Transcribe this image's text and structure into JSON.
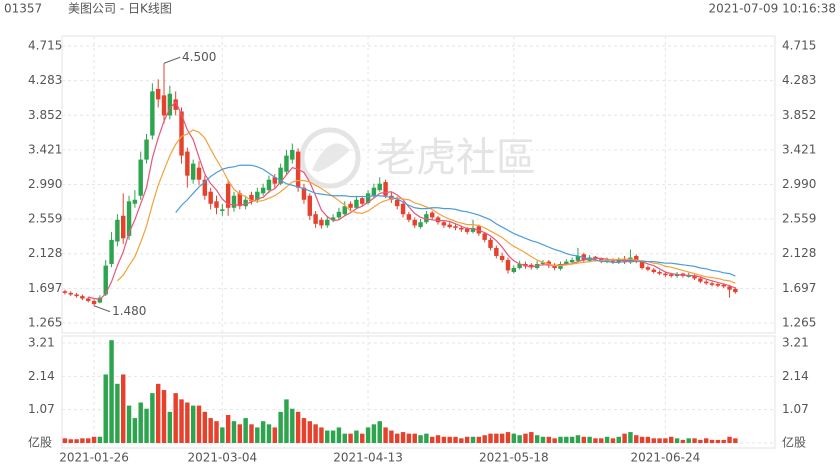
{
  "header": {
    "code": "01357",
    "title": "美图公司 - 日K线图",
    "time": "2021-07-09 10:16:38"
  },
  "watermark": "老虎社區",
  "chart_data": {
    "type": "candlestick",
    "up_color": "#2da44e",
    "down_color": "#e5412d",
    "grid": true,
    "categories": [
      null,
      null,
      null,
      null,
      null,
      "2021-01-26",
      null,
      null,
      null,
      null,
      null,
      null,
      null,
      null,
      null,
      null,
      null,
      null,
      null,
      null,
      null,
      null,
      null,
      null,
      null,
      null,
      null,
      "2021-03-04",
      null,
      null,
      null,
      null,
      null,
      null,
      null,
      null,
      null,
      null,
      null,
      null,
      null,
      null,
      null,
      null,
      null,
      null,
      null,
      null,
      null,
      null,
      null,
      null,
      "2021-04-13",
      null,
      null,
      null,
      null,
      null,
      null,
      null,
      null,
      null,
      null,
      null,
      null,
      null,
      null,
      null,
      null,
      null,
      null,
      null,
      null,
      null,
      null,
      null,
      null,
      "2021-05-18",
      null,
      null,
      null,
      null,
      null,
      null,
      null,
      null,
      null,
      null,
      null,
      null,
      null,
      null,
      null,
      null,
      null,
      null,
      null,
      null,
      null,
      null,
      null,
      null,
      null,
      "2021-06-24",
      null,
      null,
      null,
      null,
      null,
      null,
      null,
      null,
      null,
      null,
      null,
      null
    ],
    "candles": [
      [
        1.66,
        1.68,
        1.62,
        1.64
      ],
      [
        1.64,
        1.66,
        1.6,
        1.62
      ],
      [
        1.62,
        1.64,
        1.58,
        1.6
      ],
      [
        1.6,
        1.62,
        1.55,
        1.57
      ],
      [
        1.57,
        1.59,
        1.52,
        1.54
      ],
      [
        1.54,
        1.56,
        1.48,
        1.5
      ],
      [
        1.52,
        1.61,
        1.51,
        1.58
      ],
      [
        1.62,
        2.05,
        1.6,
        1.98
      ],
      [
        2.0,
        2.4,
        1.96,
        2.3
      ],
      [
        2.28,
        2.62,
        2.22,
        2.55
      ],
      [
        2.6,
        2.88,
        2.25,
        2.32
      ],
      [
        2.35,
        2.85,
        2.3,
        2.78
      ],
      [
        2.75,
        2.92,
        2.7,
        2.8
      ],
      [
        2.85,
        3.4,
        2.8,
        3.3
      ],
      [
        3.3,
        3.62,
        3.25,
        3.55
      ],
      [
        3.6,
        4.25,
        3.55,
        4.15
      ],
      [
        4.18,
        4.3,
        3.95,
        4.05
      ],
      [
        4.1,
        4.5,
        3.75,
        3.85
      ],
      [
        3.85,
        4.22,
        3.8,
        4.12
      ],
      [
        4.05,
        4.15,
        3.85,
        3.92
      ],
      [
        3.9,
        3.95,
        3.25,
        3.35
      ],
      [
        3.4,
        3.45,
        2.95,
        3.1
      ],
      [
        3.05,
        3.3,
        3.0,
        3.25
      ],
      [
        3.2,
        3.28,
        2.98,
        3.05
      ],
      [
        3.05,
        3.1,
        2.8,
        2.85
      ],
      [
        2.9,
        2.95,
        2.68,
        2.75
      ],
      [
        2.78,
        2.85,
        2.62,
        2.7
      ],
      [
        2.66,
        2.75,
        2.6,
        2.68
      ],
      [
        3.0,
        3.05,
        2.6,
        2.7
      ],
      [
        2.7,
        2.9,
        2.65,
        2.85
      ],
      [
        2.88,
        2.92,
        2.68,
        2.72
      ],
      [
        2.72,
        2.85,
        2.68,
        2.8
      ],
      [
        2.86,
        2.9,
        2.74,
        2.78
      ],
      [
        2.8,
        2.95,
        2.76,
        2.9
      ],
      [
        2.88,
        3.0,
        2.85,
        2.95
      ],
      [
        2.92,
        3.1,
        2.88,
        3.05
      ],
      [
        3.08,
        3.12,
        2.95,
        3.0
      ],
      [
        3.0,
        3.25,
        2.98,
        3.2
      ],
      [
        3.15,
        3.42,
        3.12,
        3.35
      ],
      [
        3.3,
        3.5,
        3.25,
        3.42
      ],
      [
        3.4,
        3.44,
        2.9,
        2.95
      ],
      [
        2.95,
        3.0,
        2.75,
        2.8
      ],
      [
        2.85,
        2.88,
        2.55,
        2.6
      ],
      [
        2.62,
        2.66,
        2.45,
        2.5
      ],
      [
        2.55,
        2.58,
        2.44,
        2.48
      ],
      [
        2.48,
        2.6,
        2.45,
        2.55
      ],
      [
        2.55,
        2.62,
        2.52,
        2.58
      ],
      [
        2.58,
        2.7,
        2.55,
        2.65
      ],
      [
        2.62,
        2.78,
        2.6,
        2.72
      ],
      [
        2.75,
        2.78,
        2.66,
        2.7
      ],
      [
        2.7,
        2.85,
        2.68,
        2.8
      ],
      [
        2.82,
        2.85,
        2.72,
        2.75
      ],
      [
        2.76,
        2.92,
        2.74,
        2.88
      ],
      [
        2.85,
        3.0,
        2.82,
        2.95
      ],
      [
        2.92,
        3.08,
        2.9,
        3.0
      ],
      [
        3.02,
        3.05,
        2.82,
        2.85
      ],
      [
        2.85,
        2.9,
        2.76,
        2.8
      ],
      [
        2.8,
        2.84,
        2.68,
        2.72
      ],
      [
        2.75,
        2.78,
        2.58,
        2.62
      ],
      [
        2.62,
        2.65,
        2.52,
        2.55
      ],
      [
        2.55,
        2.58,
        2.45,
        2.48
      ],
      [
        2.46,
        2.56,
        2.44,
        2.52
      ],
      [
        2.52,
        2.66,
        2.5,
        2.62
      ],
      [
        2.64,
        2.66,
        2.55,
        2.58
      ],
      [
        2.58,
        2.6,
        2.49,
        2.52
      ],
      [
        2.52,
        2.54,
        2.45,
        2.48
      ],
      [
        2.49,
        2.52,
        2.44,
        2.46
      ],
      [
        2.47,
        2.5,
        2.42,
        2.45
      ],
      [
        2.45,
        2.48,
        2.4,
        2.43
      ],
      [
        2.44,
        2.46,
        2.37,
        2.4
      ],
      [
        2.4,
        2.55,
        2.38,
        2.45
      ],
      [
        2.47,
        2.49,
        2.35,
        2.38
      ],
      [
        2.38,
        2.4,
        2.27,
        2.3
      ],
      [
        2.3,
        2.33,
        2.17,
        2.2
      ],
      [
        2.2,
        2.23,
        2.07,
        2.1
      ],
      [
        2.1,
        2.14,
        2.02,
        2.05
      ],
      [
        2.05,
        2.08,
        1.88,
        1.92
      ],
      [
        1.9,
        1.98,
        1.88,
        1.95
      ],
      [
        1.95,
        2.04,
        1.93,
        2.0
      ],
      [
        2.0,
        2.03,
        1.94,
        1.97
      ],
      [
        1.99,
        2.01,
        1.93,
        1.96
      ],
      [
        1.95,
        2.04,
        1.93,
        2.0
      ],
      [
        2.0,
        2.05,
        1.98,
        2.02
      ],
      [
        2.03,
        2.05,
        1.95,
        1.98
      ],
      [
        1.99,
        2.01,
        1.92,
        1.95
      ],
      [
        1.94,
        2.03,
        1.92,
        2.0
      ],
      [
        2.0,
        2.06,
        1.98,
        2.03
      ],
      [
        2.02,
        2.08,
        2.0,
        2.05
      ],
      [
        2.04,
        2.2,
        2.02,
        2.1
      ],
      [
        2.12,
        2.14,
        2.02,
        2.05
      ],
      [
        2.04,
        2.11,
        2.02,
        2.08
      ],
      [
        2.09,
        2.1,
        2.03,
        2.06
      ],
      [
        2.06,
        2.08,
        2.01,
        2.04
      ],
      [
        2.03,
        2.08,
        2.01,
        2.05
      ],
      [
        2.05,
        2.07,
        2.0,
        2.03
      ],
      [
        2.02,
        2.08,
        2.0,
        2.05
      ],
      [
        2.06,
        2.1,
        2.0,
        2.02
      ],
      [
        2.02,
        2.18,
        2.0,
        2.08
      ],
      [
        2.1,
        2.12,
        2.01,
        2.03
      ],
      [
        2.03,
        2.05,
        1.93,
        1.95
      ],
      [
        1.96,
        1.98,
        1.91,
        1.93
      ],
      [
        1.93,
        1.95,
        1.88,
        1.9
      ],
      [
        1.9,
        1.92,
        1.86,
        1.88
      ],
      [
        1.88,
        1.9,
        1.84,
        1.86
      ],
      [
        1.87,
        1.89,
        1.83,
        1.85
      ],
      [
        1.85,
        1.9,
        1.83,
        1.87
      ],
      [
        1.88,
        1.89,
        1.83,
        1.85
      ],
      [
        1.84,
        1.89,
        1.83,
        1.86
      ],
      [
        1.86,
        1.87,
        1.8,
        1.82
      ],
      [
        1.82,
        1.84,
        1.76,
        1.78
      ],
      [
        1.78,
        1.8,
        1.74,
        1.76
      ],
      [
        1.76,
        1.78,
        1.72,
        1.74
      ],
      [
        1.75,
        1.77,
        1.71,
        1.73
      ],
      [
        1.74,
        1.76,
        1.7,
        1.72
      ],
      [
        1.72,
        1.74,
        1.58,
        1.68
      ],
      [
        1.69,
        1.71,
        1.63,
        1.65
      ]
    ],
    "ylim": [
      1.265,
      4.715
    ],
    "yticks": [
      4.715,
      4.283,
      3.852,
      3.421,
      {
        "value": 2.99,
        "label": "2.990"
      },
      2.559,
      2.128,
      1.697,
      1.265
    ],
    "series": [
      {
        "color": "#e8557a",
        "values": [
          null,
          null,
          null,
          null,
          1.59,
          1.57,
          1.56,
          1.63,
          1.78,
          1.98,
          2.15,
          2.39,
          2.55,
          2.75,
          2.95,
          3.32,
          3.57,
          3.78,
          3.94,
          4.02,
          3.86,
          3.67,
          3.55,
          3.33,
          3.12,
          3.0,
          2.92,
          2.81,
          2.74,
          2.74,
          2.73,
          2.75,
          2.77,
          2.81,
          2.83,
          2.9,
          2.94,
          3.02,
          3.11,
          3.2,
          3.18,
          3.14,
          3.02,
          2.85,
          2.67,
          2.59,
          2.54,
          2.55,
          2.6,
          2.64,
          2.69,
          2.72,
          2.77,
          2.82,
          2.88,
          2.89,
          2.9,
          2.86,
          2.8,
          2.71,
          2.63,
          2.58,
          2.56,
          2.55,
          2.54,
          2.54,
          2.53,
          2.5,
          2.47,
          2.44,
          2.44,
          2.42,
          2.39,
          2.35,
          2.29,
          2.21,
          2.11,
          2.04,
          2.0,
          1.98,
          1.96,
          1.98,
          1.99,
          1.99,
          1.98,
          1.99,
          2.0,
          2.0,
          2.03,
          2.05,
          2.06,
          2.07,
          2.07,
          2.06,
          2.05,
          2.05,
          2.04,
          2.05,
          2.04,
          2.03,
          2.0,
          1.98,
          1.94,
          1.9,
          1.88,
          1.87,
          1.86,
          1.86,
          1.85,
          1.84,
          1.81,
          1.79,
          1.77,
          1.75,
          1.73,
          1.7
        ]
      },
      {
        "color": "#f2a23c",
        "values": [
          null,
          null,
          null,
          null,
          null,
          null,
          null,
          null,
          null,
          1.79,
          1.86,
          1.98,
          2.09,
          2.27,
          2.47,
          2.74,
          2.98,
          3.17,
          3.35,
          3.49,
          3.59,
          3.62,
          3.67,
          3.64,
          3.57,
          3.43,
          3.3,
          3.18,
          3.04,
          2.93,
          2.87,
          2.84,
          2.79,
          2.78,
          2.79,
          2.82,
          2.85,
          2.9,
          2.96,
          3.02,
          3.04,
          3.04,
          3.02,
          2.98,
          2.94,
          2.89,
          2.84,
          2.79,
          2.73,
          2.66,
          2.64,
          2.63,
          2.66,
          2.71,
          2.76,
          2.79,
          2.81,
          2.82,
          2.81,
          2.8,
          2.76,
          2.74,
          2.71,
          2.68,
          2.63,
          2.59,
          2.56,
          2.53,
          2.51,
          2.49,
          2.49,
          2.48,
          2.45,
          2.41,
          2.37,
          2.33,
          2.27,
          2.22,
          2.18,
          2.14,
          2.09,
          2.05,
          2.02,
          2.0,
          1.98,
          1.98,
          1.99,
          2.0,
          2.01,
          2.02,
          2.03,
          2.04,
          2.04,
          2.05,
          2.05,
          2.06,
          2.06,
          2.06,
          2.05,
          2.04,
          2.03,
          2.01,
          2.0,
          1.97,
          1.96,
          1.94,
          1.92,
          1.9,
          1.88,
          1.86,
          1.84,
          1.83,
          1.82,
          1.8,
          1.79,
          1.76
        ]
      },
      {
        "color": "#4b9cdc",
        "values": [
          null,
          null,
          null,
          null,
          null,
          null,
          null,
          null,
          null,
          null,
          null,
          null,
          null,
          null,
          null,
          null,
          null,
          null,
          null,
          2.64,
          2.73,
          2.8,
          2.88,
          2.96,
          3.02,
          3.09,
          3.14,
          3.18,
          3.2,
          3.21,
          3.23,
          3.23,
          3.23,
          3.21,
          3.18,
          3.13,
          3.08,
          3.04,
          3.0,
          2.98,
          2.96,
          2.94,
          2.91,
          2.88,
          2.87,
          2.86,
          2.85,
          2.85,
          2.85,
          2.84,
          2.84,
          2.84,
          2.84,
          2.85,
          2.85,
          2.84,
          2.83,
          2.81,
          2.77,
          2.73,
          2.7,
          2.69,
          2.69,
          2.7,
          2.7,
          2.69,
          2.69,
          2.68,
          2.66,
          2.65,
          2.63,
          2.61,
          2.58,
          2.55,
          2.5,
          2.46,
          2.42,
          2.38,
          2.35,
          2.32,
          2.29,
          2.27,
          2.24,
          2.21,
          2.18,
          2.16,
          2.13,
          2.11,
          2.1,
          2.08,
          2.06,
          2.05,
          2.03,
          2.03,
          2.02,
          2.02,
          2.03,
          2.03,
          2.03,
          2.03,
          2.03,
          2.03,
          2.02,
          2.01,
          2.01,
          2.0,
          1.99,
          1.98,
          1.97,
          1.95,
          1.94,
          1.92,
          1.91,
          1.89,
          1.88,
          1.85
        ]
      }
    ],
    "max_marker": {
      "value": 4.5,
      "label": "4.500"
    },
    "min_marker": {
      "value": 1.48,
      "label": "1.480"
    },
    "volume": {
      "values": [
        0.15,
        0.12,
        0.12,
        0.15,
        0.15,
        0.2,
        0.2,
        2.2,
        3.3,
        1.9,
        2.2,
        1.2,
        0.8,
        1.3,
        1.1,
        1.6,
        1.9,
        1.7,
        1.0,
        1.6,
        1.4,
        1.3,
        1.2,
        1.2,
        1.0,
        0.8,
        0.7,
        0.5,
        0.9,
        0.7,
        0.6,
        0.8,
        0.6,
        0.5,
        0.7,
        0.6,
        0.5,
        1.0,
        1.4,
        1.1,
        1.0,
        0.8,
        0.7,
        0.6,
        0.5,
        0.4,
        0.4,
        0.5,
        0.3,
        0.3,
        0.4,
        0.3,
        0.5,
        0.6,
        0.7,
        0.5,
        0.4,
        0.3,
        0.35,
        0.3,
        0.3,
        0.25,
        0.3,
        0.2,
        0.25,
        0.2,
        0.2,
        0.2,
        0.15,
        0.2,
        0.2,
        0.2,
        0.25,
        0.3,
        0.3,
        0.3,
        0.35,
        0.3,
        0.25,
        0.3,
        0.35,
        0.25,
        0.2,
        0.2,
        0.15,
        0.2,
        0.2,
        0.2,
        0.25,
        0.2,
        0.2,
        0.15,
        0.15,
        0.2,
        0.15,
        0.2,
        0.3,
        0.35,
        0.25,
        0.2,
        0.2,
        0.15,
        0.15,
        0.15,
        0.2,
        0.15,
        0.1,
        0.15,
        0.15,
        0.1,
        0.15,
        0.1,
        0.1,
        0.1,
        0.2,
        0.15
      ],
      "ylim": [
        0,
        3.21
      ],
      "yticks": [
        3.21,
        2.14,
        1.07,
        {
          "value": 0,
          "label": "亿股"
        }
      ]
    }
  }
}
